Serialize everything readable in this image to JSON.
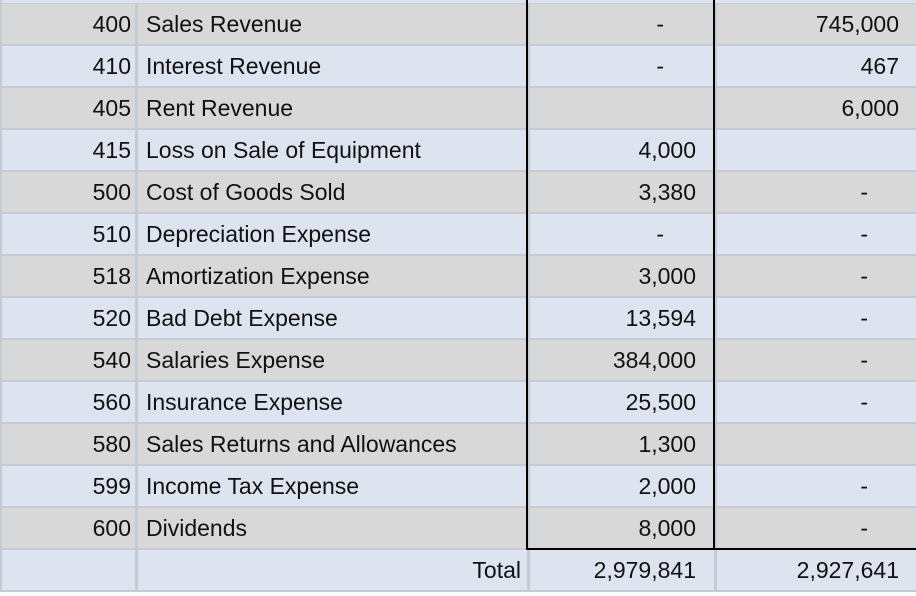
{
  "colors": {
    "row_gray": "#d8d8d8",
    "row_blue": "#dde4ef",
    "gridline": "#c5cbd3",
    "box_border": "#000000"
  },
  "rows": [
    {
      "num": "400",
      "name": "Sales Revenue",
      "debit": "-",
      "credit": "745,000"
    },
    {
      "num": "410",
      "name": "Interest Revenue",
      "debit": "-",
      "credit": "467"
    },
    {
      "num": "405",
      "name": "Rent Revenue",
      "debit": "",
      "credit": "6,000"
    },
    {
      "num": "415",
      "name": "Loss on Sale of Equipment",
      "debit": "4,000",
      "credit": ""
    },
    {
      "num": "500",
      "name": "Cost of Goods Sold",
      "debit": "3,380",
      "credit": "-"
    },
    {
      "num": "510",
      "name": "Depreciation Expense",
      "debit": "-",
      "credit": "-"
    },
    {
      "num": "518",
      "name": "Amortization Expense",
      "debit": "3,000",
      "credit": "-"
    },
    {
      "num": "520",
      "name": "Bad Debt Expense",
      "debit": "13,594",
      "credit": "-"
    },
    {
      "num": "540",
      "name": "Salaries Expense",
      "debit": "384,000",
      "credit": "-"
    },
    {
      "num": "560",
      "name": "Insurance Expense",
      "debit": "25,500",
      "credit": "-"
    },
    {
      "num": "580",
      "name": "Sales Returns and Allowances",
      "debit": "1,300",
      "credit": ""
    },
    {
      "num": "599",
      "name": "Income Tax Expense",
      "debit": "2,000",
      "credit": "-"
    },
    {
      "num": "600",
      "name": "Dividends",
      "debit": "8,000",
      "credit": "-"
    }
  ],
  "total": {
    "label": "Total",
    "debit": "2,979,841",
    "credit": "2,927,641"
  }
}
